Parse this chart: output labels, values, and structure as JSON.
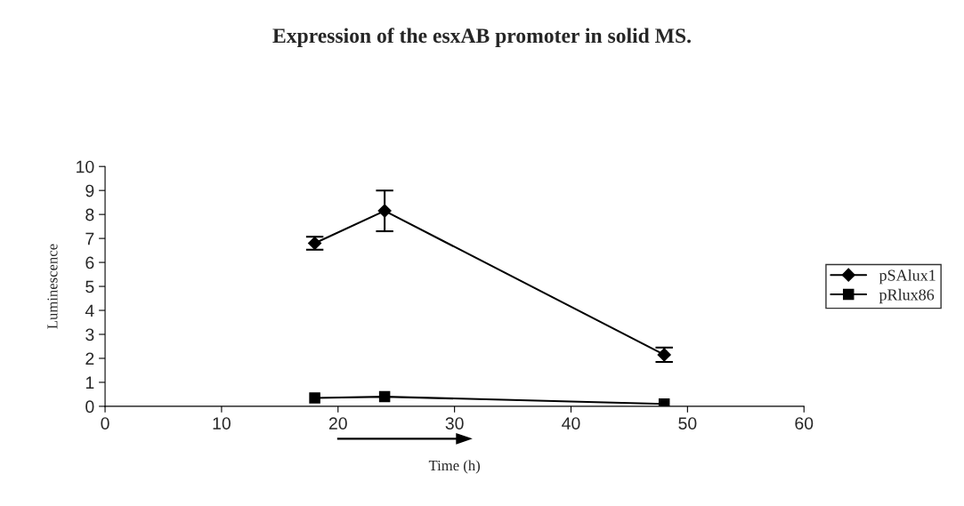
{
  "chart_data": {
    "type": "line",
    "title": "Expression of the esxAB promoter in solid MS.",
    "xlabel": "Time (h)",
    "ylabel": "Luminescence",
    "xlim": [
      0,
      60
    ],
    "xticks": [
      0,
      10,
      20,
      30,
      40,
      50,
      60
    ],
    "ylim": [
      0,
      10
    ],
    "yticks": [
      0,
      1,
      2,
      3,
      4,
      5,
      6,
      7,
      8,
      9,
      10
    ],
    "grid": false,
    "legend": "right",
    "line_style": "solid",
    "series": [
      {
        "name": "pSAlux1",
        "color": "#000000",
        "marker": "diamond",
        "x": [
          18,
          24,
          48
        ],
        "values": [
          6.8,
          8.15,
          2.15
        ],
        "errors": [
          0.27,
          0.85,
          0.3
        ]
      },
      {
        "name": "pRlux86",
        "color": "#000000",
        "marker": "square",
        "x": [
          18,
          24,
          48
        ],
        "values": [
          0.35,
          0.4,
          0.1
        ]
      }
    ]
  }
}
